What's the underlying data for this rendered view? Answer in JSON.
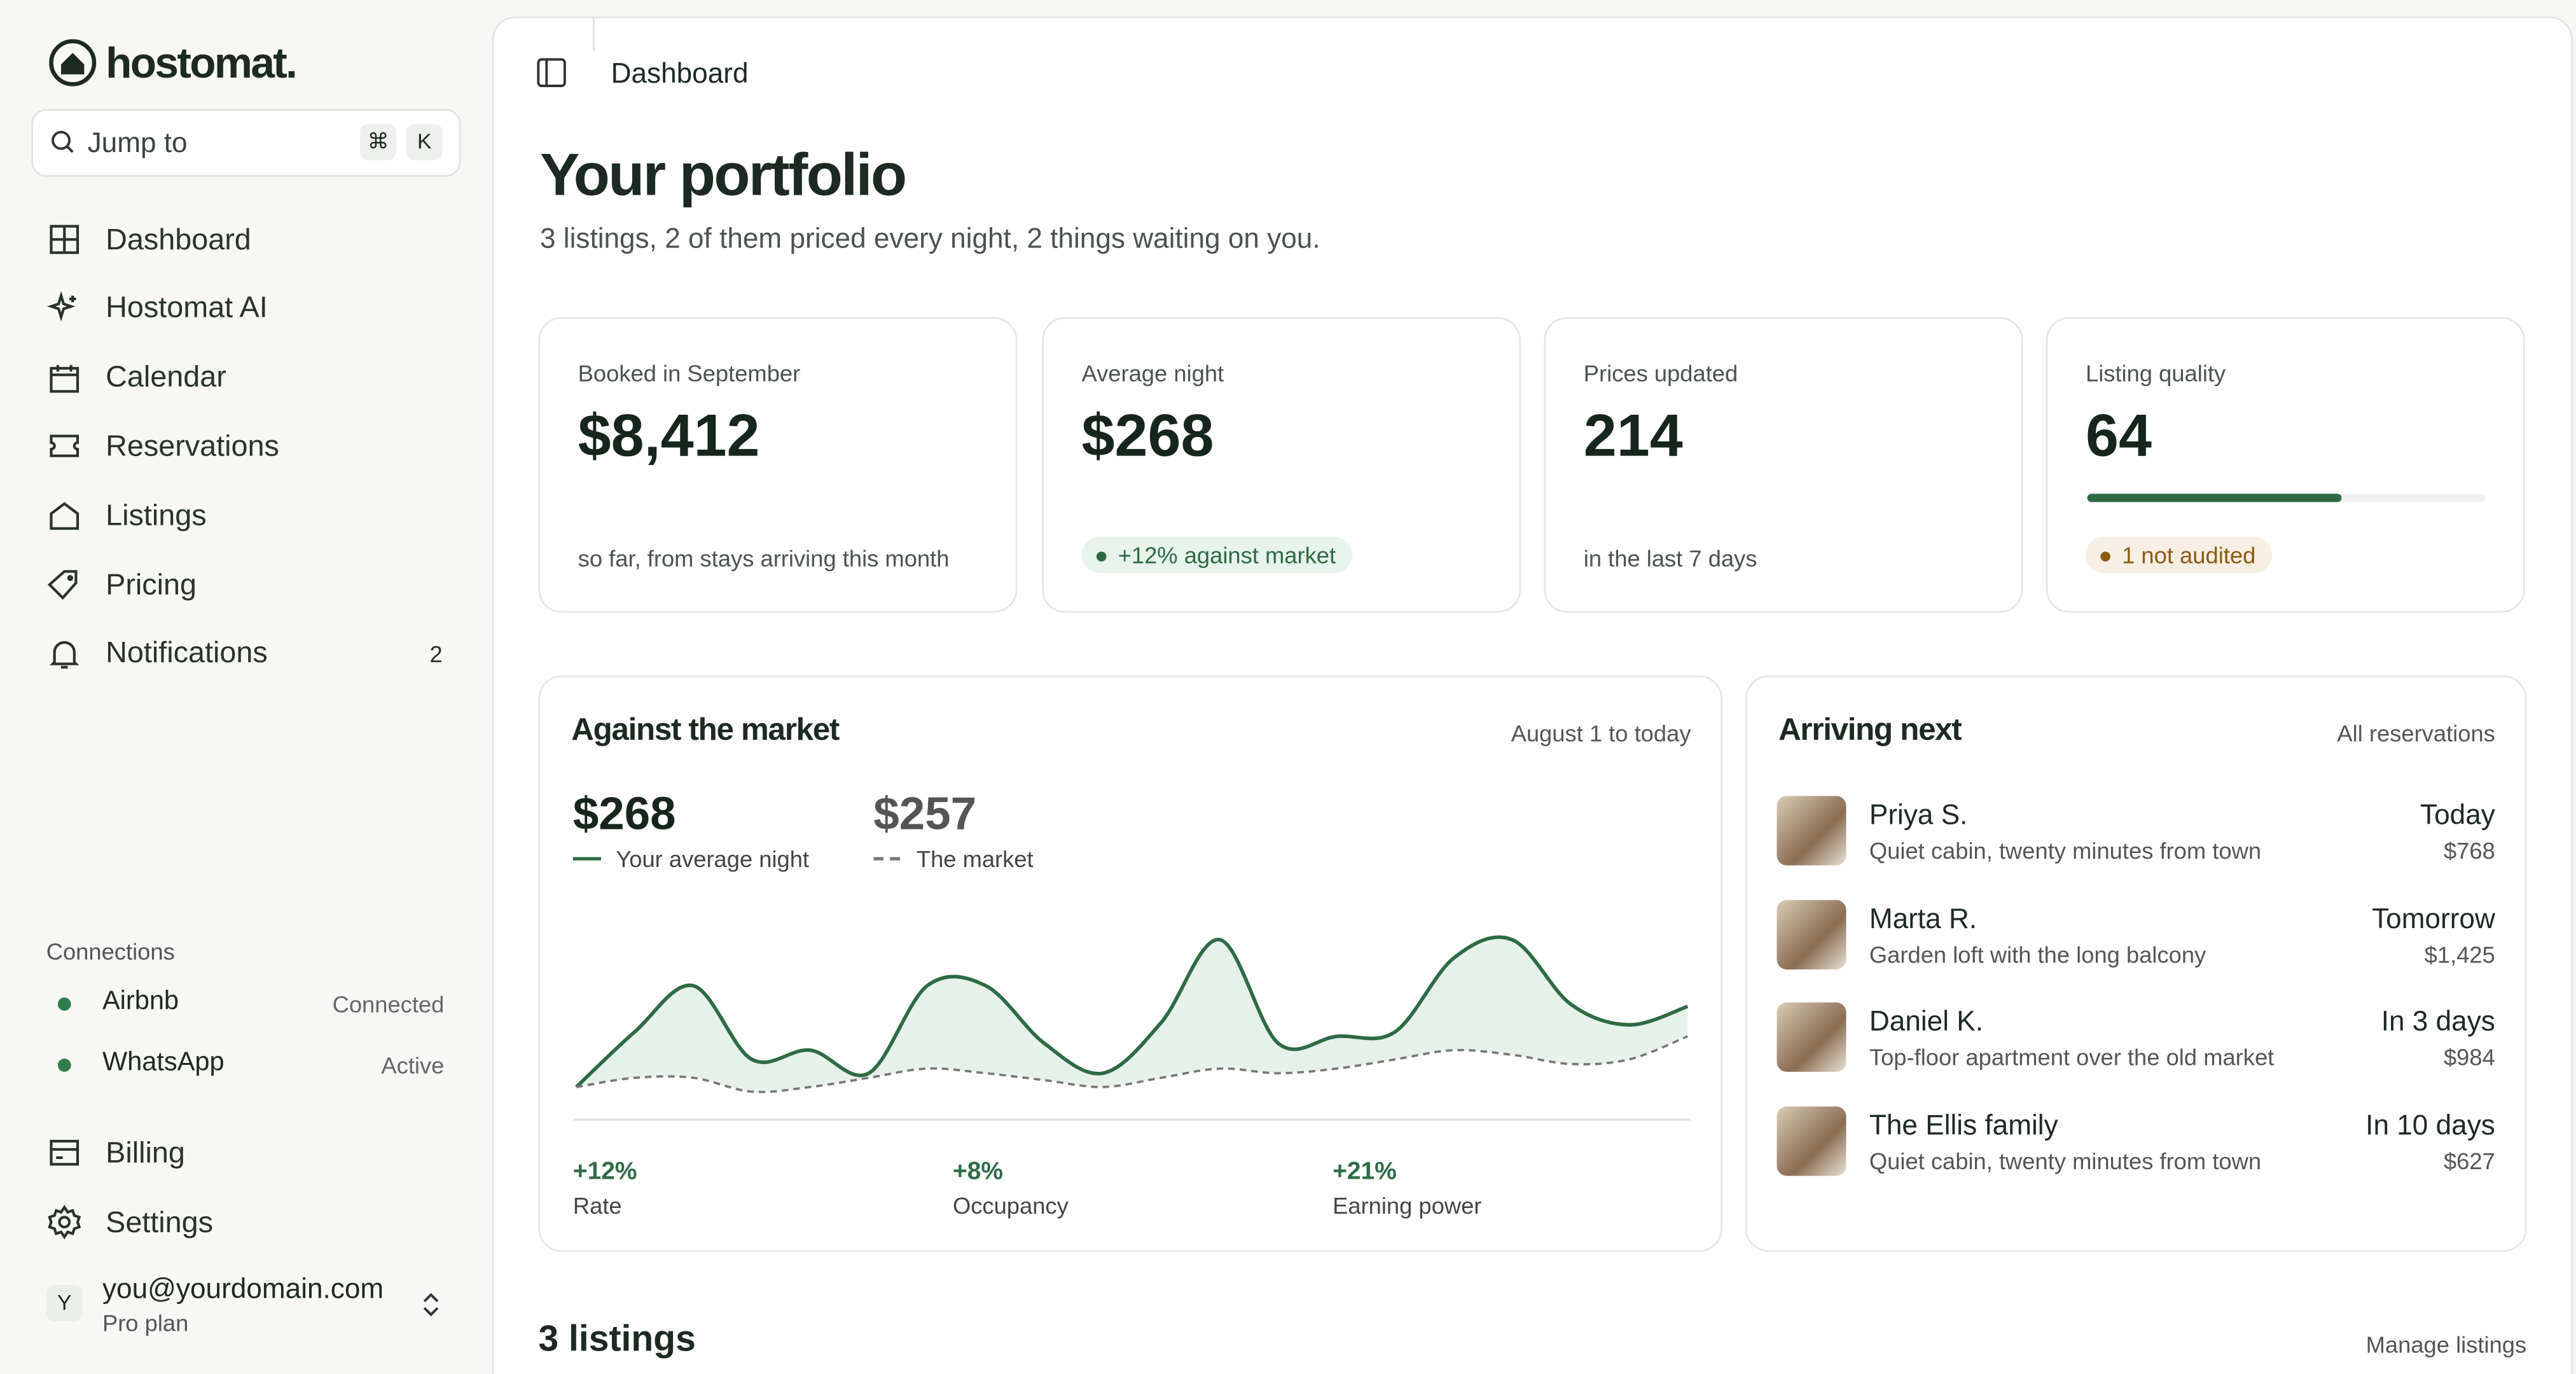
{
  "brand": "hostomat.",
  "search": {
    "placeholder": "Jump to",
    "keys": [
      "⌘",
      "K"
    ]
  },
  "nav": [
    {
      "label": "Dashboard"
    },
    {
      "label": "Hostomat AI"
    },
    {
      "label": "Calendar"
    },
    {
      "label": "Reservations"
    },
    {
      "label": "Listings"
    },
    {
      "label": "Pricing"
    },
    {
      "label": "Notifications",
      "badge": "2"
    }
  ],
  "connections": {
    "title": "Connections",
    "items": [
      {
        "name": "Airbnb",
        "status": "Connected"
      },
      {
        "name": "WhatsApp",
        "status": "Active"
      }
    ]
  },
  "footer_nav": [
    "Billing",
    "Settings"
  ],
  "user": {
    "avatar": "Y",
    "email": "you@yourdomain.com",
    "plan": "Pro plan"
  },
  "breadcrumb": "Dashboard",
  "header": {
    "title": "Your portfolio",
    "subtitle": "3 listings, 2 of them priced every night, 2 things waiting on you."
  },
  "stats": [
    {
      "label": "Booked in September",
      "value": "$8,412",
      "note": "so far, from stays arriving this month"
    },
    {
      "label": "Average night",
      "value": "$268",
      "badge": "+12% against market"
    },
    {
      "label": "Prices updated",
      "value": "214",
      "note": "in the last 7 days"
    },
    {
      "label": "Listing quality",
      "value": 64,
      "badge": "1 not audited"
    }
  ],
  "chart_data": {
    "type": "line",
    "title": "Against the market",
    "period": "August 1 to today",
    "series": [
      {
        "name": "Your average night",
        "value_label": "$268",
        "color": "#2e6b45",
        "values": [
          251,
          275,
          295,
          263,
          267,
          257,
          295,
          295,
          270,
          257,
          279,
          315,
          270,
          273,
          275,
          307,
          315,
          287,
          278,
          286
        ]
      },
      {
        "name": "The market",
        "value_label": "$257",
        "color": "#777777",
        "dashed": true,
        "values": [
          251,
          255,
          255,
          249,
          251,
          255,
          259,
          257,
          254,
          251,
          255,
          259,
          257,
          259,
          263,
          267,
          265,
          261,
          263,
          273
        ]
      }
    ],
    "metrics": [
      {
        "value": "+12%",
        "label": "Rate"
      },
      {
        "value": "+8%",
        "label": "Occupancy"
      },
      {
        "value": "+21%",
        "label": "Earning power"
      }
    ]
  },
  "arriving": {
    "title": "Arriving next",
    "link": "All reservations",
    "items": [
      {
        "name": "Priya S.",
        "listing": "Quiet cabin, twenty minutes from town",
        "when": "Today",
        "price": "$768"
      },
      {
        "name": "Marta R.",
        "listing": "Garden loft with the long balcony",
        "when": "Tomorrow",
        "price": "$1,425"
      },
      {
        "name": "Daniel K.",
        "listing": "Top-floor apartment over the old market",
        "when": "In 3 days",
        "price": "$984"
      },
      {
        "name": "The Ellis family",
        "listing": "Quiet cabin, twenty minutes from town",
        "when": "In 10 days",
        "price": "$627"
      }
    ]
  },
  "listings": {
    "title": "3 listings",
    "link": "Manage listings"
  }
}
